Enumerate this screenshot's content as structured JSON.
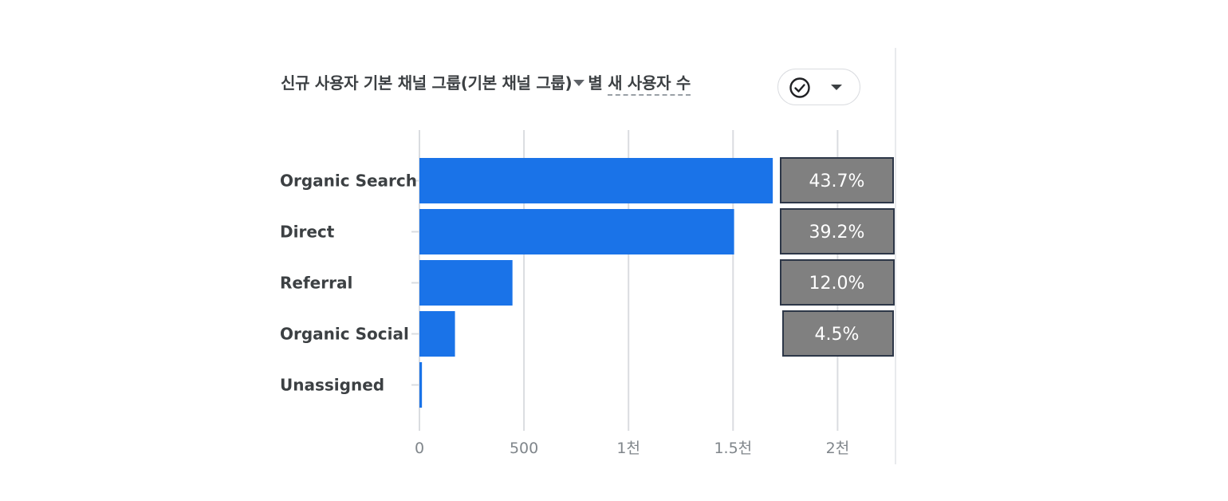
{
  "header": {
    "title_prefix": "신규 사용자 기본 채널 그룹(기본 채널 그룹)",
    "title_by": "별",
    "title_metric": "새 사용자 수"
  },
  "toolbar": {
    "toggle_icons": [
      "check-circle-icon",
      "chevron-down-icon"
    ]
  },
  "chart_data": {
    "type": "bar",
    "orientation": "horizontal",
    "title": "신규 사용자 기본 채널 그룹(기본 채널 그룹) 별 새 사용자 수",
    "categories": [
      "Organic Search",
      "Direct",
      "Referral",
      "Organic Social",
      "Unassigned"
    ],
    "values": [
      1690,
      1505,
      445,
      170,
      12
    ],
    "percent_labels": [
      "43.7%",
      "39.2%",
      "12.0%",
      "4.5%"
    ],
    "xlim": [
      0,
      2250
    ],
    "x_ticks": [
      0,
      500,
      1000,
      1500,
      2000
    ],
    "x_tick_labels": [
      "0",
      "500",
      "1천",
      "1.5천",
      "2천"
    ],
    "grid": true,
    "colors": {
      "bar": "#1a73e8",
      "percent_box_fill": "#808080",
      "percent_box_border": "#2d3748",
      "grid": "#dadce0"
    }
  }
}
